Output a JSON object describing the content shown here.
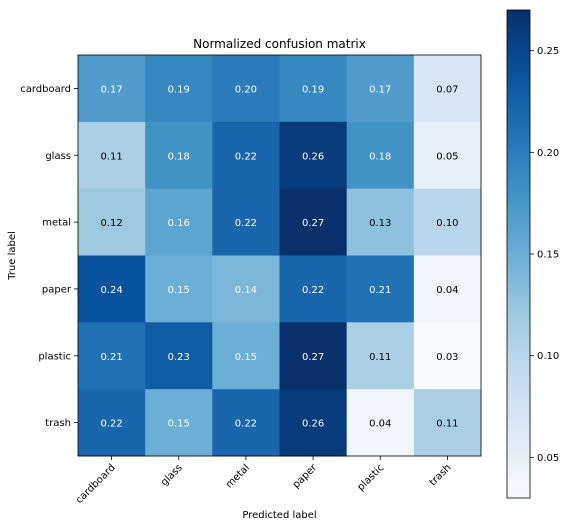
{
  "chart_data": {
    "type": "heatmap",
    "title": "Normalized confusion matrix",
    "xlabel": "Predicted label",
    "ylabel": "True label",
    "x_categories": [
      "cardboard",
      "glass",
      "metal",
      "paper",
      "plastic",
      "trash"
    ],
    "y_categories": [
      "cardboard",
      "glass",
      "metal",
      "paper",
      "plastic",
      "trash"
    ],
    "values": [
      [
        0.17,
        0.19,
        0.2,
        0.19,
        0.17,
        0.07
      ],
      [
        0.11,
        0.18,
        0.22,
        0.26,
        0.18,
        0.05
      ],
      [
        0.12,
        0.16,
        0.22,
        0.27,
        0.13,
        0.1
      ],
      [
        0.24,
        0.15,
        0.14,
        0.22,
        0.21,
        0.04
      ],
      [
        0.21,
        0.23,
        0.15,
        0.27,
        0.11,
        0.03
      ],
      [
        0.22,
        0.15,
        0.22,
        0.26,
        0.04,
        0.11
      ]
    ],
    "value_labels": [
      [
        "0.17",
        "0.19",
        "0.20",
        "0.19",
        "0.17",
        "0.07"
      ],
      [
        "0.11",
        "0.18",
        "0.22",
        "0.26",
        "0.18",
        "0.05"
      ],
      [
        "0.12",
        "0.16",
        "0.22",
        "0.27",
        "0.13",
        "0.10"
      ],
      [
        "0.24",
        "0.15",
        "0.14",
        "0.22",
        "0.21",
        "0.04"
      ],
      [
        "0.21",
        "0.23",
        "0.15",
        "0.27",
        "0.11",
        "0.03"
      ],
      [
        "0.22",
        "0.15",
        "0.22",
        "0.26",
        "0.04",
        "0.11"
      ]
    ],
    "colormap": "Blues",
    "colorbar": {
      "range": [
        0.03,
        0.27
      ],
      "ticks": [
        0.05,
        0.1,
        0.15,
        0.2,
        0.25
      ],
      "tick_labels": [
        "0.05",
        "0.10",
        "0.15",
        "0.20",
        "0.25"
      ]
    },
    "grid": false,
    "text_threshold": 0.135
  }
}
